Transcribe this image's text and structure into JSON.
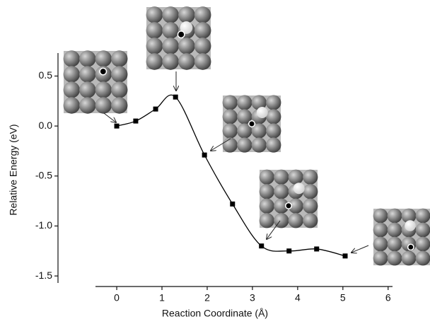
{
  "chart_data": {
    "type": "line",
    "x_label": "Reaction Coordinate (Å)",
    "y_label": "Relative Energy (eV)",
    "x": [
      0,
      0.42,
      0.86,
      1.3,
      1.94,
      2.56,
      3.2,
      3.81,
      4.42,
      5.05
    ],
    "values": [
      0,
      0.05,
      0.17,
      0.29,
      -0.29,
      -0.78,
      -1.2,
      -1.25,
      -1.23,
      -1.3
    ],
    "color": "#000000",
    "xlim": [
      -0.47,
      5.55
    ],
    "ylim": [
      -1.57,
      0.73
    ],
    "xticks": [
      0,
      1,
      2,
      3,
      4,
      5,
      6
    ],
    "yticks": [
      0.5,
      {
        "value": 0,
        "label": "0.0"
      },
      -0.5,
      {
        "value": -1,
        "label": "-1.0"
      },
      -1.5
    ]
  }
}
